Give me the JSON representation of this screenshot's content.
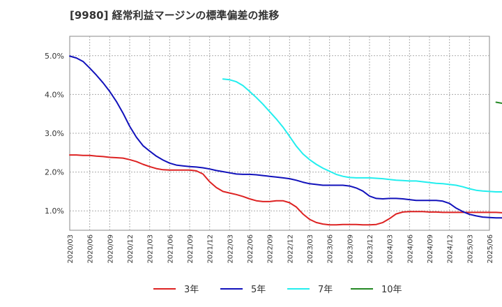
{
  "chart_data": {
    "type": "line",
    "title": "[9980]  経常利益マージンの標準偏差の推移",
    "xlabel": "",
    "ylabel": "",
    "ylim": [
      0.5,
      5.5
    ],
    "y_ticks": [
      "1.0%",
      "2.0%",
      "3.0%",
      "4.0%",
      "5.0%"
    ],
    "y_tick_values": [
      1.0,
      2.0,
      3.0,
      4.0,
      5.0
    ],
    "x_ticks": [
      "2020/03",
      "2020/06",
      "2020/09",
      "2020/12",
      "2021/03",
      "2021/06",
      "2021/09",
      "2021/12",
      "2022/03",
      "2022/06",
      "2022/09",
      "2022/12",
      "2023/03",
      "2023/06",
      "2023/09",
      "2023/12",
      "2024/03",
      "2024/06",
      "2024/09",
      "2024/12",
      "2025/03",
      "2025/06"
    ],
    "grid": true,
    "legend_position": "bottom",
    "series": [
      {
        "name": "3年",
        "color": "#dd2222",
        "points": [
          [
            "2020/03",
            2.44
          ],
          [
            "2020/04",
            2.44
          ],
          [
            "2020/05",
            2.43
          ],
          [
            "2020/06",
            2.43
          ],
          [
            "2020/07",
            2.41
          ],
          [
            "2020/08",
            2.4
          ],
          [
            "2020/09",
            2.38
          ],
          [
            "2020/10",
            2.37
          ],
          [
            "2020/11",
            2.36
          ],
          [
            "2020/12",
            2.32
          ],
          [
            "2021/01",
            2.27
          ],
          [
            "2021/02",
            2.2
          ],
          [
            "2021/03",
            2.14
          ],
          [
            "2021/04",
            2.09
          ],
          [
            "2021/05",
            2.06
          ],
          [
            "2021/06",
            2.05
          ],
          [
            "2021/07",
            2.05
          ],
          [
            "2021/08",
            2.05
          ],
          [
            "2021/09",
            2.05
          ],
          [
            "2021/10",
            2.03
          ],
          [
            "2021/11",
            1.95
          ],
          [
            "2021/12",
            1.75
          ],
          [
            "2022/01",
            1.6
          ],
          [
            "2022/02",
            1.5
          ],
          [
            "2022/03",
            1.46
          ],
          [
            "2022/04",
            1.42
          ],
          [
            "2022/05",
            1.37
          ],
          [
            "2022/06",
            1.31
          ],
          [
            "2022/07",
            1.26
          ],
          [
            "2022/08",
            1.24
          ],
          [
            "2022/09",
            1.24
          ],
          [
            "2022/10",
            1.26
          ],
          [
            "2022/11",
            1.26
          ],
          [
            "2022/12",
            1.21
          ],
          [
            "2023/01",
            1.1
          ],
          [
            "2023/02",
            0.92
          ],
          [
            "2023/03",
            0.78
          ],
          [
            "2023/04",
            0.7
          ],
          [
            "2023/05",
            0.66
          ],
          [
            "2023/06",
            0.64
          ],
          [
            "2023/07",
            0.64
          ],
          [
            "2023/08",
            0.65
          ],
          [
            "2023/09",
            0.65
          ],
          [
            "2023/10",
            0.65
          ],
          [
            "2023/11",
            0.64
          ],
          [
            "2023/12",
            0.64
          ],
          [
            "2024/01",
            0.65
          ],
          [
            "2024/02",
            0.7
          ],
          [
            "2024/03",
            0.8
          ],
          [
            "2024/04",
            0.92
          ],
          [
            "2024/05",
            0.97
          ],
          [
            "2024/06",
            0.98
          ],
          [
            "2024/07",
            0.98
          ],
          [
            "2024/08",
            0.98
          ],
          [
            "2024/09",
            0.97
          ],
          [
            "2024/10",
            0.97
          ],
          [
            "2024/11",
            0.96
          ],
          [
            "2024/12",
            0.96
          ],
          [
            "2025/01",
            0.96
          ],
          [
            "2025/02",
            0.96
          ],
          [
            "2025/03",
            0.96
          ],
          [
            "2025/04",
            0.96
          ],
          [
            "2025/05",
            0.96
          ],
          [
            "2025/06",
            0.96
          ],
          [
            "2025/07",
            0.96
          ],
          [
            "2025/08",
            0.95
          ]
        ]
      },
      {
        "name": "5年",
        "color": "#1111bb",
        "points": [
          [
            "2020/03",
            4.99
          ],
          [
            "2020/04",
            4.94
          ],
          [
            "2020/05",
            4.85
          ],
          [
            "2020/06",
            4.68
          ],
          [
            "2020/07",
            4.5
          ],
          [
            "2020/08",
            4.3
          ],
          [
            "2020/09",
            4.08
          ],
          [
            "2020/10",
            3.82
          ],
          [
            "2020/11",
            3.52
          ],
          [
            "2020/12",
            3.18
          ],
          [
            "2021/01",
            2.9
          ],
          [
            "2021/02",
            2.68
          ],
          [
            "2021/03",
            2.54
          ],
          [
            "2021/04",
            2.41
          ],
          [
            "2021/05",
            2.31
          ],
          [
            "2021/06",
            2.23
          ],
          [
            "2021/07",
            2.18
          ],
          [
            "2021/08",
            2.16
          ],
          [
            "2021/09",
            2.14
          ],
          [
            "2021/10",
            2.13
          ],
          [
            "2021/11",
            2.11
          ],
          [
            "2021/12",
            2.08
          ],
          [
            "2022/01",
            2.04
          ],
          [
            "2022/02",
            2.01
          ],
          [
            "2022/03",
            1.98
          ],
          [
            "2022/04",
            1.95
          ],
          [
            "2022/05",
            1.94
          ],
          [
            "2022/06",
            1.94
          ],
          [
            "2022/07",
            1.93
          ],
          [
            "2022/08",
            1.91
          ],
          [
            "2022/09",
            1.89
          ],
          [
            "2022/10",
            1.87
          ],
          [
            "2022/11",
            1.85
          ],
          [
            "2022/12",
            1.83
          ],
          [
            "2023/01",
            1.79
          ],
          [
            "2023/02",
            1.74
          ],
          [
            "2023/03",
            1.7
          ],
          [
            "2023/04",
            1.68
          ],
          [
            "2023/05",
            1.66
          ],
          [
            "2023/06",
            1.66
          ],
          [
            "2023/07",
            1.66
          ],
          [
            "2023/08",
            1.66
          ],
          [
            "2023/09",
            1.64
          ],
          [
            "2023/10",
            1.59
          ],
          [
            "2023/11",
            1.51
          ],
          [
            "2023/12",
            1.38
          ],
          [
            "2024/01",
            1.32
          ],
          [
            "2024/02",
            1.31
          ],
          [
            "2024/03",
            1.32
          ],
          [
            "2024/04",
            1.32
          ],
          [
            "2024/05",
            1.31
          ],
          [
            "2024/06",
            1.29
          ],
          [
            "2024/07",
            1.27
          ],
          [
            "2024/08",
            1.27
          ],
          [
            "2024/09",
            1.27
          ],
          [
            "2024/10",
            1.27
          ],
          [
            "2024/11",
            1.25
          ],
          [
            "2024/12",
            1.19
          ],
          [
            "2025/01",
            1.07
          ],
          [
            "2025/02",
            0.98
          ],
          [
            "2025/03",
            0.91
          ],
          [
            "2025/04",
            0.87
          ],
          [
            "2025/05",
            0.84
          ],
          [
            "2025/06",
            0.83
          ],
          [
            "2025/07",
            0.82
          ],
          [
            "2025/08",
            0.82
          ]
        ]
      },
      {
        "name": "7年",
        "color": "#22eeee",
        "points": [
          [
            "2022/02",
            4.4
          ],
          [
            "2022/03",
            4.38
          ],
          [
            "2022/04",
            4.33
          ],
          [
            "2022/05",
            4.23
          ],
          [
            "2022/06",
            4.08
          ],
          [
            "2022/07",
            3.92
          ],
          [
            "2022/08",
            3.75
          ],
          [
            "2022/09",
            3.56
          ],
          [
            "2022/10",
            3.37
          ],
          [
            "2022/11",
            3.16
          ],
          [
            "2022/12",
            2.92
          ],
          [
            "2023/01",
            2.67
          ],
          [
            "2023/02",
            2.47
          ],
          [
            "2023/03",
            2.32
          ],
          [
            "2023/04",
            2.2
          ],
          [
            "2023/05",
            2.1
          ],
          [
            "2023/06",
            2.02
          ],
          [
            "2023/07",
            1.94
          ],
          [
            "2023/08",
            1.89
          ],
          [
            "2023/09",
            1.86
          ],
          [
            "2023/10",
            1.85
          ],
          [
            "2023/11",
            1.85
          ],
          [
            "2023/12",
            1.85
          ],
          [
            "2024/01",
            1.84
          ],
          [
            "2024/02",
            1.83
          ],
          [
            "2024/03",
            1.81
          ],
          [
            "2024/04",
            1.79
          ],
          [
            "2024/05",
            1.78
          ],
          [
            "2024/06",
            1.77
          ],
          [
            "2024/07",
            1.77
          ],
          [
            "2024/08",
            1.75
          ],
          [
            "2024/09",
            1.73
          ],
          [
            "2024/10",
            1.71
          ],
          [
            "2024/11",
            1.7
          ],
          [
            "2024/12",
            1.68
          ],
          [
            "2025/01",
            1.66
          ],
          [
            "2025/02",
            1.62
          ],
          [
            "2025/03",
            1.57
          ],
          [
            "2025/04",
            1.53
          ],
          [
            "2025/05",
            1.51
          ],
          [
            "2025/06",
            1.5
          ],
          [
            "2025/07",
            1.49
          ],
          [
            "2025/08",
            1.49
          ]
        ]
      },
      {
        "name": "10年",
        "color": "#228822",
        "points": [
          [
            "2025/07",
            3.8
          ],
          [
            "2025/08",
            3.77
          ]
        ]
      }
    ]
  }
}
